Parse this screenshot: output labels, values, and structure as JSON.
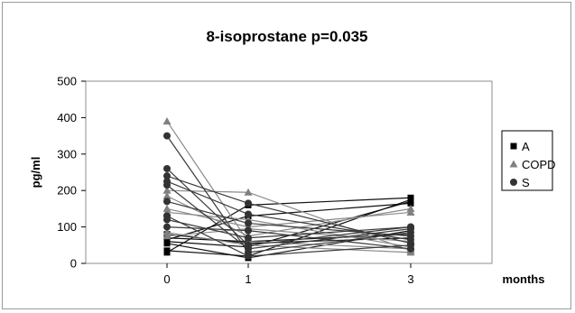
{
  "chart_data": {
    "type": "line",
    "title": "8-isoprostane  p=0.035",
    "xlabel": "months",
    "ylabel": "pg/ml",
    "x": [
      0,
      1,
      3
    ],
    "x_tick_labels": [
      "0",
      "1",
      "3"
    ],
    "ylim": [
      0,
      500
    ],
    "y_ticks": [
      0,
      100,
      200,
      300,
      400,
      500
    ],
    "y_tick_labels": [
      "0",
      "100",
      "200",
      "300",
      "400",
      "500"
    ],
    "grid": false,
    "legend_position": "right",
    "legend": [
      {
        "label": "A",
        "marker": "square",
        "color": "#000000"
      },
      {
        "label": "COPD",
        "marker": "triangle",
        "color": "#808080"
      },
      {
        "label": "S",
        "marker": "circle",
        "color": "#333333"
      }
    ],
    "series": [
      {
        "group": "A",
        "values": [
          30,
          160,
          180
        ]
      },
      {
        "group": "A",
        "values": [
          35,
          20,
          175
        ]
      },
      {
        "group": "A",
        "values": [
          60,
          45,
          170
        ]
      },
      {
        "group": "A",
        "values": [
          65,
          130,
          165
        ]
      },
      {
        "group": "A",
        "values": [
          55,
          15,
          90
        ]
      },
      {
        "group": "A",
        "values": [
          70,
          60,
          80
        ]
      },
      {
        "group": "A",
        "values": [
          80,
          55,
          70
        ]
      },
      {
        "group": "COPD",
        "values": [
          390,
          60,
          40
        ]
      },
      {
        "group": "COPD",
        "values": [
          200,
          195,
          35
        ]
      },
      {
        "group": "COPD",
        "values": [
          185,
          75,
          150
        ]
      },
      {
        "group": "COPD",
        "values": [
          150,
          100,
          140
        ]
      },
      {
        "group": "COPD",
        "values": [
          140,
          120,
          45
        ]
      },
      {
        "group": "COPD",
        "values": [
          85,
          50,
          30
        ]
      },
      {
        "group": "COPD",
        "values": [
          75,
          95,
          60
        ]
      },
      {
        "group": "S",
        "values": [
          350,
          30,
          85
        ]
      },
      {
        "group": "S",
        "values": [
          260,
          50,
          100
        ]
      },
      {
        "group": "S",
        "values": [
          240,
          165,
          55
        ]
      },
      {
        "group": "S",
        "values": [
          225,
          135,
          65
        ]
      },
      {
        "group": "S",
        "values": [
          215,
          40,
          95
        ]
      },
      {
        "group": "S",
        "values": [
          170,
          110,
          75
        ]
      },
      {
        "group": "S",
        "values": [
          130,
          20,
          50
        ]
      },
      {
        "group": "S",
        "values": [
          120,
          70,
          100
        ]
      },
      {
        "group": "S",
        "values": [
          100,
          90,
          40
        ]
      }
    ]
  }
}
